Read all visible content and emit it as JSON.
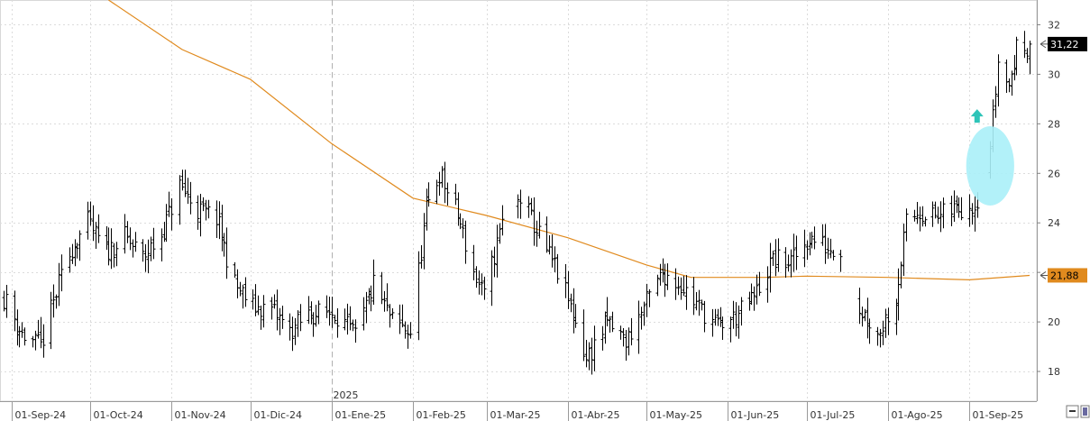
{
  "chart_data": {
    "type": "ohlc",
    "title": "",
    "xlabel": "",
    "ylabel": "",
    "ylim": [
      16.8,
      33.0
    ],
    "yticks": [
      18,
      20,
      22,
      24,
      26,
      28,
      30,
      32
    ],
    "year_marker": {
      "label": "2025",
      "date": "2025-01-01"
    },
    "date_range": [
      "2024-08-29",
      "2025-09-24"
    ],
    "x_tick_labels": [
      {
        "label": "01-Sep-24",
        "date": "2024-09-01"
      },
      {
        "label": "01-Oct-24",
        "date": "2024-10-01"
      },
      {
        "label": "01-Nov-24",
        "date": "2024-11-01"
      },
      {
        "label": "01-Dic-24",
        "date": "2024-12-01"
      },
      {
        "label": "01-Ene-25",
        "date": "2025-01-01"
      },
      {
        "label": "01-Feb-25",
        "date": "2025-02-01"
      },
      {
        "label": "01-Mar-25",
        "date": "2025-03-01"
      },
      {
        "label": "01-Abr-25",
        "date": "2025-04-01"
      },
      {
        "label": "01-May-25",
        "date": "2025-05-01"
      },
      {
        "label": "01-Jun-25",
        "date": "2025-06-01"
      },
      {
        "label": "01-Jul-25",
        "date": "2025-07-01"
      },
      {
        "label": "01-Ago-25",
        "date": "2025-08-01"
      },
      {
        "label": "01-Sep-25",
        "date": "2025-09-01"
      }
    ],
    "price_series_anchors": [
      [
        "2024-08-29",
        21.0
      ],
      [
        "2024-09-05",
        19.5
      ],
      [
        "2024-09-12",
        19.0
      ],
      [
        "2024-09-19",
        21.5
      ],
      [
        "2024-09-24",
        23.0
      ],
      [
        "2024-09-30",
        24.0
      ],
      [
        "2024-10-07",
        22.8
      ],
      [
        "2024-10-14",
        23.4
      ],
      [
        "2024-10-21",
        22.6
      ],
      [
        "2024-10-28",
        23.5
      ],
      [
        "2024-11-04",
        25.5
      ],
      [
        "2024-11-11",
        24.5
      ],
      [
        "2024-11-18",
        24.2
      ],
      [
        "2024-11-25",
        21.5
      ],
      [
        "2024-12-02",
        20.6
      ],
      [
        "2024-12-09",
        20.5
      ],
      [
        "2024-12-16",
        19.6
      ],
      [
        "2024-12-23",
        20.3
      ],
      [
        "2025-01-02",
        20.4
      ],
      [
        "2025-01-10",
        19.4
      ],
      [
        "2025-01-17",
        21.5
      ],
      [
        "2025-01-24",
        20.0
      ],
      [
        "2025-01-31",
        19.6
      ],
      [
        "2025-02-06",
        24.5
      ],
      [
        "2025-02-11",
        26.0
      ],
      [
        "2025-02-18",
        24.3
      ],
      [
        "2025-02-24",
        22.0
      ],
      [
        "2025-02-28",
        21.0
      ],
      [
        "2025-03-07",
        24.0
      ],
      [
        "2025-03-14",
        25.0
      ],
      [
        "2025-03-21",
        23.5
      ],
      [
        "2025-03-28",
        22.0
      ],
      [
        "2025-04-04",
        20.0
      ],
      [
        "2025-04-08",
        18.5
      ],
      [
        "2025-04-16",
        20.0
      ],
      [
        "2025-04-23",
        19.2
      ],
      [
        "2025-04-30",
        20.6
      ],
      [
        "2025-05-07",
        22.0
      ],
      [
        "2025-05-14",
        21.5
      ],
      [
        "2025-05-21",
        20.6
      ],
      [
        "2025-05-28",
        19.8
      ],
      [
        "2025-06-04",
        20.2
      ],
      [
        "2025-06-11",
        21.0
      ],
      [
        "2025-06-18",
        22.5
      ],
      [
        "2025-06-25",
        22.4
      ],
      [
        "2025-07-02",
        23.4
      ],
      [
        "2025-07-09",
        23.0
      ],
      [
        "2025-07-15",
        23.0
      ],
      [
        "2025-07-17",
        21.0
      ],
      [
        "2025-07-24",
        20.2
      ],
      [
        "2025-07-28",
        19.5
      ],
      [
        "2025-08-04",
        21.0
      ],
      [
        "2025-08-08",
        24.0
      ],
      [
        "2025-08-13",
        24.5
      ],
      [
        "2025-08-20",
        24.2
      ],
      [
        "2025-08-27",
        24.6
      ],
      [
        "2025-09-03",
        24.8
      ],
      [
        "2025-09-08",
        26.0
      ],
      [
        "2025-09-12",
        30.5
      ],
      [
        "2025-09-16",
        29.5
      ],
      [
        "2025-09-19",
        31.0
      ],
      [
        "2025-09-24",
        31.22
      ]
    ],
    "gaps": [
      [
        "2025-03-10",
        "2025-03-12"
      ],
      [
        "2025-07-15",
        "2025-07-20"
      ],
      [
        "2025-09-05",
        "2025-09-08"
      ]
    ],
    "moving_average": {
      "color": "#e08a1e",
      "points": [
        [
          "2024-10-08",
          33.0
        ],
        [
          "2024-11-05",
          31.0
        ],
        [
          "2024-12-01",
          29.8
        ],
        [
          "2025-01-01",
          27.2
        ],
        [
          "2025-02-01",
          25.0
        ],
        [
          "2025-03-01",
          24.3
        ],
        [
          "2025-04-01",
          23.4
        ],
        [
          "2025-05-01",
          22.3
        ],
        [
          "2025-05-18",
          21.8
        ],
        [
          "2025-06-15",
          21.8
        ],
        [
          "2025-07-01",
          21.85
        ],
        [
          "2025-08-01",
          21.8
        ],
        [
          "2025-09-01",
          21.7
        ],
        [
          "2025-09-24",
          21.88
        ]
      ]
    },
    "last_price_label": "31,22",
    "ma_last_label": "21,88",
    "price_bar_color": "#000000",
    "annotations": {
      "ellipse": {
        "center": [
          "2025-09-09",
          26.3
        ],
        "rx_days": 5,
        "ry": 1.6,
        "color": "#aaf0f8"
      },
      "arrow": {
        "at": [
          "2025-09-04",
          28.3
        ],
        "color": "#2ec4b8"
      }
    }
  }
}
